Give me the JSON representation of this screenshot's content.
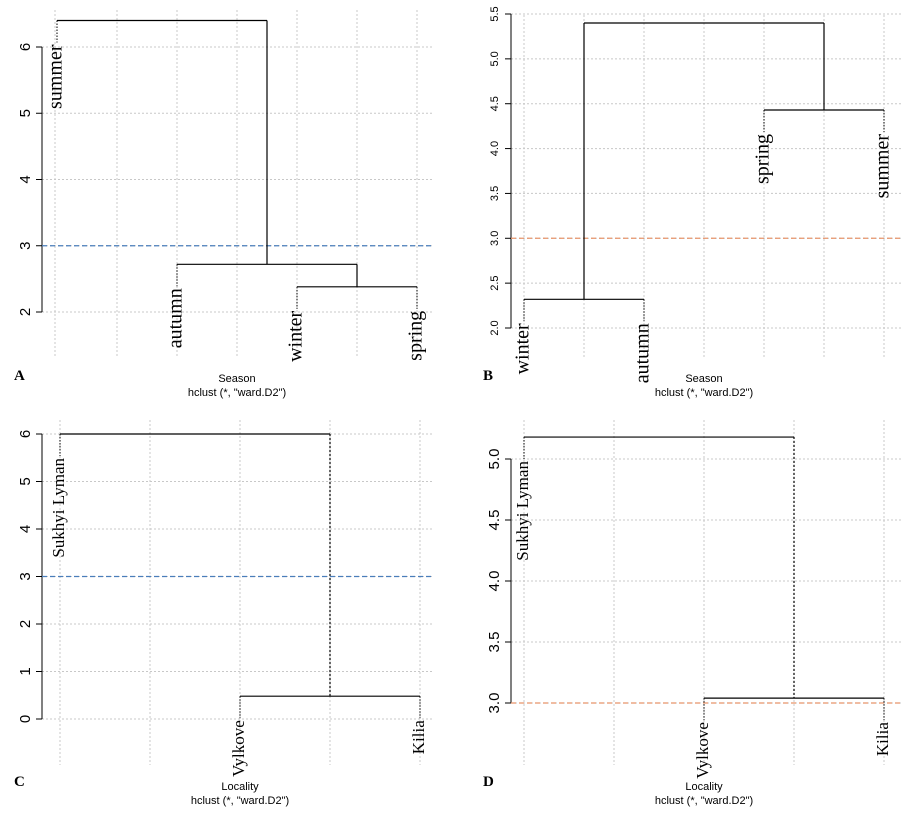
{
  "chart_data": [
    {
      "panel_label": "A",
      "type": "dendrogram",
      "xlabel": "Season",
      "subtitle": "hclust (*, \"ward.D2\")",
      "yticks": [
        "2",
        "3",
        "4",
        "5",
        "6"
      ],
      "ylim": [
        1.85,
        6.65
      ],
      "leaves": [
        "summer",
        "autumn",
        "winter",
        "spring"
      ],
      "merges": [
        {
          "left": "winter",
          "right": "spring",
          "height": 2.38
        },
        {
          "left": "autumn",
          "right": "winter+spring",
          "height": 2.72
        },
        {
          "left": "summer",
          "right": "autumn+winter+spring",
          "height": 6.4
        }
      ],
      "cut_line": {
        "value": 3,
        "color": "#4a7ebb"
      }
    },
    {
      "panel_label": "B",
      "type": "dendrogram",
      "xlabel": "Season",
      "subtitle": "hclust (*, \"ward.D2\")",
      "yticks": [
        "2.0",
        "2.5",
        "3.0",
        "3.5",
        "4.0",
        "4.5",
        "5.0",
        "5.5"
      ],
      "ylim": [
        1.95,
        5.5
      ],
      "leaves": [
        "winter",
        "autumn",
        "spring",
        "summer"
      ],
      "merges": [
        {
          "left": "winter",
          "right": "autumn",
          "height": 2.32
        },
        {
          "left": "spring",
          "right": "summer",
          "height": 4.43
        },
        {
          "left": "winter+autumn",
          "right": "spring+summer",
          "height": 5.4
        }
      ],
      "cut_line": {
        "value": 3,
        "color": "#e8956b"
      }
    },
    {
      "panel_label": "C",
      "type": "dendrogram",
      "xlabel": "Locality",
      "subtitle": "hclust (*, \"ward.D2\")",
      "yticks": [
        "0",
        "1",
        "2",
        "3",
        "4",
        "5",
        "6"
      ],
      "ylim": [
        -0.15,
        6.3
      ],
      "leaves": [
        "Sukhyi Lyman",
        "Vylkove",
        "Kilia"
      ],
      "merges": [
        {
          "left": "Vylkove",
          "right": "Kilia",
          "height": 0.48
        },
        {
          "left": "Sukhyi Lyman",
          "right": "Vylkove+Kilia",
          "height": 6.0
        }
      ],
      "cut_line": {
        "value": 3,
        "color": "#4a7ebb"
      }
    },
    {
      "panel_label": "D",
      "type": "dendrogram",
      "xlabel": "Locality",
      "subtitle": "hclust (*, \"ward.D2\")",
      "yticks": [
        "3.0",
        "3.5",
        "4.0",
        "4.5",
        "5.0"
      ],
      "ylim": [
        2.85,
        5.25
      ],
      "leaves": [
        "Sukhyi Lyman",
        "Vylkove",
        "Kilia"
      ],
      "merges": [
        {
          "left": "Vylkove",
          "right": "Kilia",
          "height": 3.04
        },
        {
          "left": "Sukhyi Lyman",
          "right": "Vylkove+Kilia",
          "height": 5.18
        }
      ],
      "cut_line": {
        "value": 3,
        "color": "#e8956b"
      }
    }
  ]
}
